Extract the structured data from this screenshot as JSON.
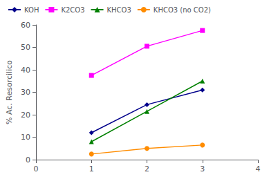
{
  "chart_data": {
    "type": "line",
    "ylabel": "% Ac. Resorcilico",
    "x": [
      1,
      2,
      3
    ],
    "series": [
      {
        "name": "KOH",
        "color": "#00008B",
        "marker": "diamond",
        "values": [
          12,
          24.5,
          31
        ]
      },
      {
        "name": "K2CO3",
        "color": "#FF00FF",
        "marker": "square",
        "values": [
          37.5,
          50.5,
          57.5
        ]
      },
      {
        "name": "KHCO3",
        "color": "#008000",
        "marker": "triangle",
        "values": [
          8,
          21.5,
          35
        ]
      },
      {
        "name": "KHCO3 (no CO2)",
        "color": "#FF8C00",
        "marker": "circle",
        "values": [
          2.5,
          5,
          6.5
        ]
      }
    ],
    "xlim": [
      0,
      4
    ],
    "ylim": [
      0,
      60
    ],
    "xticks": [
      0,
      1,
      2,
      3,
      4
    ],
    "yticks": [
      0,
      10,
      20,
      30,
      40,
      50,
      60
    ],
    "grid": false,
    "legend": "upper left"
  }
}
